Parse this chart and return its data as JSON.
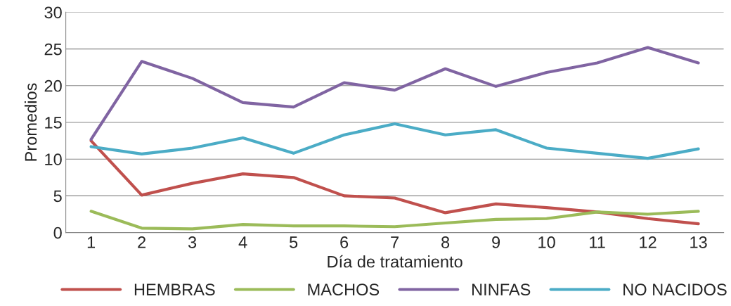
{
  "chart_data": {
    "type": "line",
    "xlabel": "Día de tratamiento",
    "ylabel": "Promedios",
    "categories": [
      "1",
      "2",
      "3",
      "4",
      "5",
      "6",
      "7",
      "8",
      "9",
      "10",
      "11",
      "12",
      "13"
    ],
    "series": [
      {
        "name": "HEMBRAS",
        "color": "#c0504d",
        "values": [
          12.5,
          5.1,
          6.7,
          8.0,
          7.5,
          5.0,
          4.7,
          2.7,
          3.9,
          3.4,
          2.8,
          1.9,
          1.2
        ]
      },
      {
        "name": "MACHOS",
        "color": "#9bbb59",
        "values": [
          2.9,
          0.6,
          0.5,
          1.1,
          0.9,
          0.9,
          0.8,
          1.3,
          1.8,
          1.9,
          2.8,
          2.5,
          2.9
        ]
      },
      {
        "name": "NINFAS",
        "color": "#8064a2",
        "values": [
          12.7,
          23.3,
          21.0,
          17.7,
          17.1,
          20.4,
          19.4,
          22.3,
          19.9,
          21.8,
          23.1,
          25.2,
          23.1
        ]
      },
      {
        "name": "NO NACIDOS",
        "color": "#4bacc6",
        "values": [
          11.7,
          10.7,
          11.5,
          12.9,
          10.8,
          13.3,
          14.8,
          13.3,
          14.0,
          11.5,
          10.8,
          10.1,
          11.4
        ]
      }
    ],
    "ylim": [
      0,
      30
    ],
    "yticks": [
      0,
      5,
      10,
      15,
      20,
      25,
      30
    ],
    "grid": "y",
    "legend": "bottom",
    "marker": "none",
    "line_style": "solid"
  }
}
